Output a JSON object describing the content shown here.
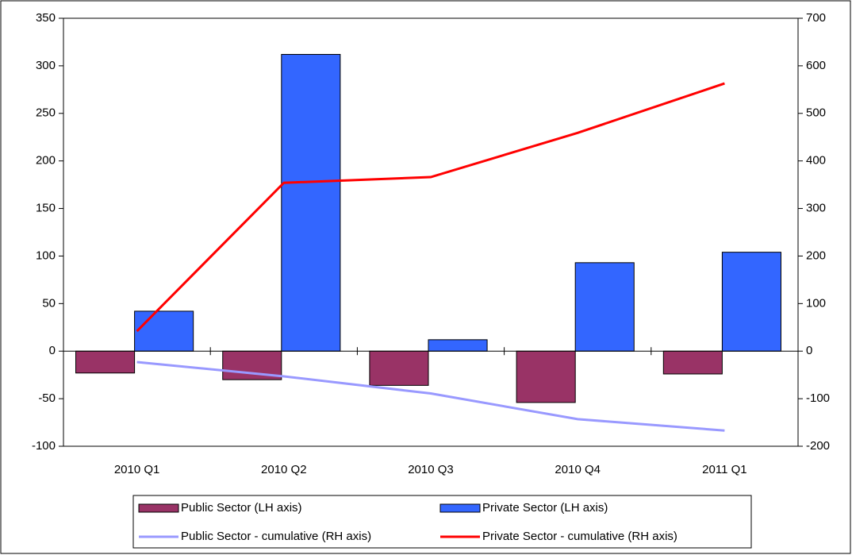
{
  "chart_data": {
    "type": "bar-line",
    "categories": [
      "2010 Q1",
      "2010 Q2",
      "2010 Q3",
      "2010 Q4",
      "2011 Q1"
    ],
    "series": [
      {
        "name": "Public Sector (LH axis)",
        "type": "bar",
        "color": "#993366",
        "values": [
          -23,
          -30,
          -36,
          -54,
          -24
        ]
      },
      {
        "name": "Private Sector (LH axis)",
        "type": "bar",
        "color": "#3366ff",
        "values": [
          42,
          312,
          12,
          93,
          104
        ]
      },
      {
        "name": "Public Sector - cumulative (RH axis)",
        "type": "line",
        "axis": "y2",
        "color": "#9999ff",
        "values": [
          -23,
          -53,
          -89,
          -143,
          -167
        ]
      },
      {
        "name": "Private Sector - cumulative (RH axis)",
        "type": "line",
        "axis": "y2",
        "color": "#ff0000",
        "values": [
          42,
          354,
          366,
          459,
          563
        ]
      }
    ],
    "ylim": [
      -100,
      350
    ],
    "yticks": [
      -100,
      -50,
      0,
      50,
      100,
      150,
      200,
      250,
      300,
      350
    ],
    "y2lim": [
      -200,
      700
    ],
    "y2ticks": [
      -200,
      -100,
      0,
      100,
      200,
      300,
      400,
      500,
      600,
      700
    ],
    "legend": "bottom"
  }
}
